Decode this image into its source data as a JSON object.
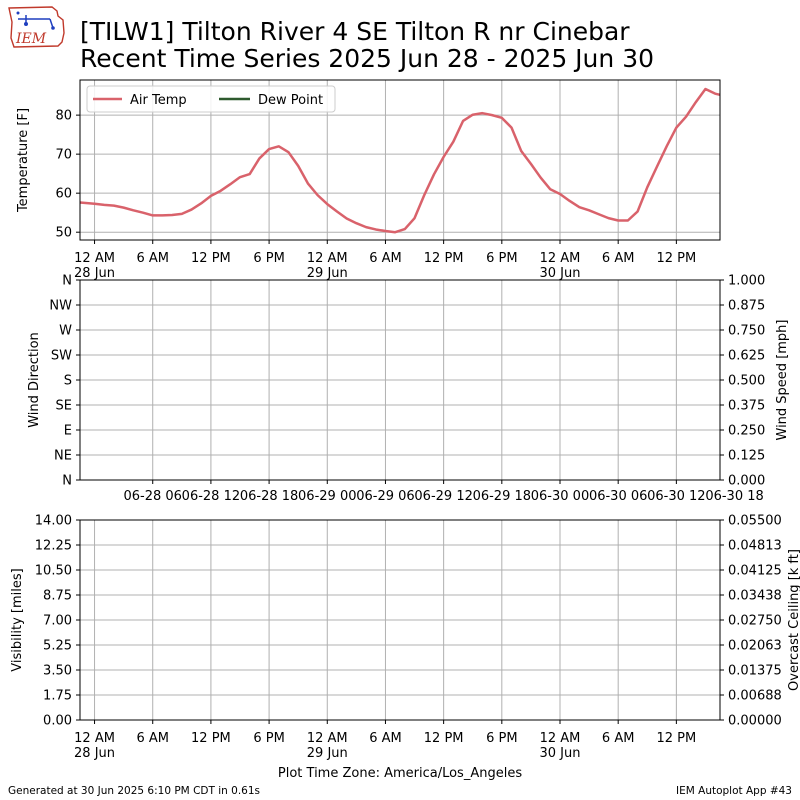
{
  "logo": {
    "text": "IEM"
  },
  "title": {
    "line1": "[TILW1] Tilton River 4 SE Tilton R nr Cinebar",
    "line2": "Recent Time Series 2025 Jun 28 - 2025 Jun 30"
  },
  "colors": {
    "air_temp": "#d9626b",
    "dew_point": "#2e5a2e",
    "ceiling_label": "#008000",
    "grid": "#b0b0b0",
    "logo_red": "#c0392b",
    "logo_blue": "#1f3fbf"
  },
  "chart_data": [
    {
      "type": "line",
      "panel": "temperature",
      "ylabel": "Temperature [F]",
      "ylim": [
        48,
        89
      ],
      "yticks": [
        50,
        60,
        70,
        80
      ],
      "x_unit": "hours since 28 Jun 12 AM",
      "xlim": [
        -1.5,
        64.5
      ],
      "xticks": [
        {
          "x": 0,
          "line1": "12 AM",
          "line2": "28 Jun"
        },
        {
          "x": 6,
          "line1": "6 AM",
          "line2": ""
        },
        {
          "x": 12,
          "line1": "12 PM",
          "line2": ""
        },
        {
          "x": 18,
          "line1": "6 PM",
          "line2": ""
        },
        {
          "x": 24,
          "line1": "12 AM",
          "line2": "29 Jun"
        },
        {
          "x": 30,
          "line1": "6 AM",
          "line2": ""
        },
        {
          "x": 36,
          "line1": "12 PM",
          "line2": ""
        },
        {
          "x": 42,
          "line1": "6 PM",
          "line2": ""
        },
        {
          "x": 48,
          "line1": "12 AM",
          "line2": "30 Jun"
        },
        {
          "x": 54,
          "line1": "6 AM",
          "line2": ""
        },
        {
          "x": 60,
          "line1": "12 PM",
          "line2": ""
        }
      ],
      "grid": true,
      "legend_position": "top-left",
      "series": [
        {
          "name": "Air Temp",
          "x": [
            -1.5,
            0,
            1,
            2,
            3,
            4,
            5,
            6,
            7,
            8,
            9,
            10,
            11,
            12,
            13,
            14,
            15,
            16,
            17,
            18,
            19,
            20,
            21,
            22,
            23,
            24,
            25,
            26,
            27,
            28,
            29,
            30,
            31,
            32,
            33,
            34,
            35,
            36,
            37,
            38,
            39,
            40,
            41,
            42,
            43,
            44,
            45,
            46,
            47,
            48,
            49,
            50,
            51,
            52,
            53,
            54,
            55,
            56,
            57,
            58,
            59,
            60,
            61,
            62,
            63,
            64,
            64.5
          ],
          "y": [
            57.6,
            57.3,
            57,
            56.8,
            56.3,
            55.6,
            55,
            54.3,
            54.3,
            54.4,
            54.7,
            55.8,
            57.4,
            59.3,
            60.6,
            62.3,
            64.1,
            64.9,
            68.9,
            71.3,
            72,
            70.5,
            67,
            62.5,
            59.5,
            57.2,
            55.3,
            53.5,
            52.3,
            51.3,
            50.7,
            50.3,
            50,
            50.8,
            53.6,
            59.5,
            64.8,
            69.3,
            73.2,
            78.5,
            80.1,
            80.5,
            80,
            79.3,
            76.8,
            70.8,
            67.5,
            64,
            61,
            59.8,
            58,
            56.4,
            55.6,
            54.6,
            53.6,
            53,
            53,
            55.3,
            61.5,
            66.8,
            72,
            76.8,
            79.6,
            83.3,
            86.7,
            85.5,
            85.2
          ]
        },
        {
          "name": "Dew Point",
          "x": [],
          "y": []
        }
      ]
    },
    {
      "type": "line",
      "panel": "wind",
      "ylabel": "Wind Direction",
      "ylabel_right": "Wind Speed [mph]",
      "ylim": [
        0,
        8
      ],
      "yticks_left": [
        "N",
        "NE",
        "E",
        "SE",
        "S",
        "SW",
        "W",
        "NW",
        "N"
      ],
      "ylim_right": [
        0,
        1
      ],
      "yticks_right": [
        "0.000",
        "0.125",
        "0.250",
        "0.375",
        "0.500",
        "0.625",
        "0.750",
        "0.875",
        "1.000"
      ],
      "x_unit": "hours since 28 Jun 12 AM",
      "xlim": [
        -1.5,
        64.5
      ],
      "xticks": [
        {
          "x": 6,
          "label": "06-28 06"
        },
        {
          "x": 12,
          "label": "06-28 12"
        },
        {
          "x": 18,
          "label": "06-28 18"
        },
        {
          "x": 24,
          "label": "06-29 00"
        },
        {
          "x": 30,
          "label": "06-29 06"
        },
        {
          "x": 36,
          "label": "06-29 12"
        },
        {
          "x": 42,
          "label": "06-29 18"
        },
        {
          "x": 48,
          "label": "06-30 00"
        },
        {
          "x": 54,
          "label": "06-30 06"
        },
        {
          "x": 60,
          "label": "06-30 12"
        },
        {
          "x": 66,
          "label": "06-30 18"
        }
      ],
      "grid": true,
      "series": []
    },
    {
      "type": "line",
      "panel": "visibility",
      "ylabel": "Visibility [miles]",
      "ylabel_right": "Overcast Ceiling [k ft]",
      "ylim": [
        0,
        14
      ],
      "yticks_left": [
        "0.00",
        "1.75",
        "3.50",
        "5.25",
        "7.00",
        "8.75",
        "10.50",
        "12.25",
        "14.00"
      ],
      "ylim_right": [
        0,
        0.055
      ],
      "yticks_right": [
        "0.00000",
        "0.00688",
        "0.01375",
        "0.02063",
        "0.02750",
        "0.03438",
        "0.04125",
        "0.04813",
        "0.05500"
      ],
      "xlabel": "Plot Time Zone: America/Los_Angeles",
      "x_unit": "hours since 28 Jun 12 AM",
      "xlim": [
        -1.5,
        64.5
      ],
      "xticks": [
        {
          "x": 0,
          "line1": "12 AM",
          "line2": "28 Jun"
        },
        {
          "x": 6,
          "line1": "6 AM",
          "line2": ""
        },
        {
          "x": 12,
          "line1": "12 PM",
          "line2": ""
        },
        {
          "x": 18,
          "line1": "6 PM",
          "line2": ""
        },
        {
          "x": 24,
          "line1": "12 AM",
          "line2": "29 Jun"
        },
        {
          "x": 30,
          "line1": "6 AM",
          "line2": ""
        },
        {
          "x": 36,
          "line1": "12 PM",
          "line2": ""
        },
        {
          "x": 42,
          "line1": "6 PM",
          "line2": ""
        },
        {
          "x": 48,
          "line1": "12 AM",
          "line2": "30 Jun"
        },
        {
          "x": 54,
          "line1": "6 AM",
          "line2": ""
        },
        {
          "x": 60,
          "line1": "12 PM",
          "line2": ""
        }
      ],
      "grid": true,
      "series": []
    }
  ],
  "footer": {
    "left": "Generated at 30 Jun 2025 6:10 PM CDT in 0.61s",
    "right": "IEM Autoplot App #43"
  }
}
